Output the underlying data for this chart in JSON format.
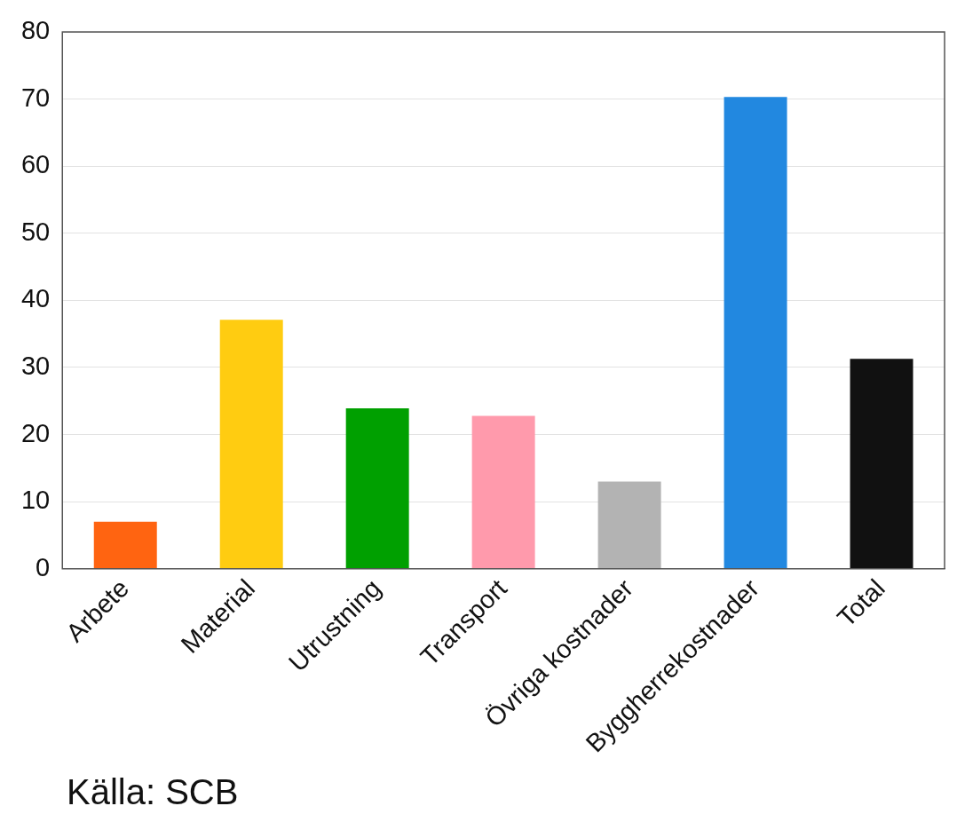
{
  "chart_data": {
    "type": "bar",
    "categories": [
      "Arbete",
      "Material",
      "Utrustning",
      "Transport",
      "Övriga kostnader",
      "Byggherrekostnader",
      "Total"
    ],
    "values": [
      7.0,
      37.1,
      23.9,
      22.8,
      13.0,
      70.3,
      31.3
    ],
    "colors": [
      "#ff6411",
      "#ffcc11",
      "#00a000",
      "#ff9aac",
      "#b3b3b3",
      "#2288e0",
      "#111111"
    ],
    "ylim": [
      0,
      80
    ],
    "yticks": [
      0,
      10,
      20,
      30,
      40,
      50,
      60,
      70,
      80
    ],
    "grid": "y",
    "legend": false,
    "annotations": [
      "Källa: SCB"
    ]
  }
}
